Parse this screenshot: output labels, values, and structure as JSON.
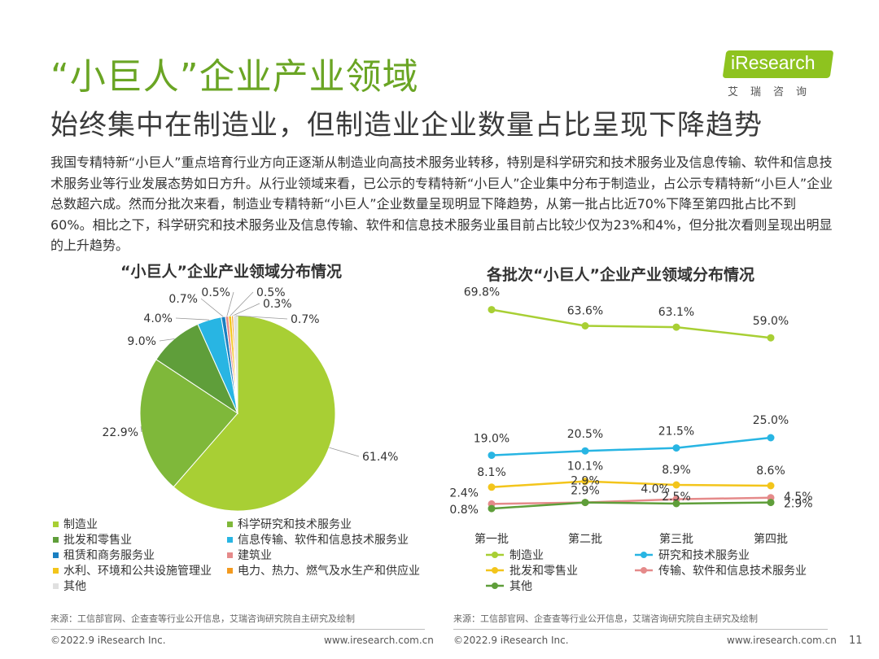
{
  "header": {
    "title": "“小巨人”企业产业领域",
    "subtitle": "始终集中在制造业，但制造业企业数量占比呈现下降趋势",
    "logo_text": "iResearch",
    "logo_sub": "艾瑞咨询"
  },
  "intro": "我国专精特新“小巨人”重点培育行业方向正逐渐从制造业向高技术服务业转移，特别是科学研究和技术服务业及信息传输、软件和信息技术服务业等行业发展态势如日方升。从行业领域来看，已公示的专精特新“小巨人”企业集中分布于制造业，占公示专精特新“小巨人”企业总数超六成。然而分批次来看，制造业专精特新“小巨人”企业数量呈现明显下降趋势，从第一批占比近70%下降至第四批占比不到60%。相比之下，科学研究和技术服务业及信息传输、软件和信息技术服务业虽目前占比较少仅为23%和4%，但分批次看则呈现出明显的上升趋势。",
  "chart_data": [
    {
      "type": "pie",
      "title": "“小巨人”企业产业领域分布情况",
      "unit": "%",
      "slices": [
        {
          "name": "制造业",
          "value": 61.4,
          "label": "61.4%",
          "color": "#a8cf34"
        },
        {
          "name": "科学研究和技术服务业",
          "value": 22.9,
          "label": "22.9%",
          "color": "#7fb83a"
        },
        {
          "name": "批发和零售业",
          "value": 9.0,
          "label": "9.0%",
          "color": "#5f9e3a"
        },
        {
          "name": "信息传输、软件和信息技术服务业",
          "value": 4.0,
          "label": "4.0%",
          "color": "#28b5e3"
        },
        {
          "name": "租赁和商务服务业",
          "value": 0.7,
          "label": "0.7%",
          "color": "#1a7fc1"
        },
        {
          "name": "建筑业",
          "value": 0.5,
          "label": "0.5%",
          "color": "#e58a8a"
        },
        {
          "name": "水利、环境和公共设施管理业",
          "value": 0.5,
          "label": "0.5%",
          "color": "#f3c51b"
        },
        {
          "name": "电力、热力、燃气及水生产和供应业",
          "value": 0.3,
          "label": "0.3%",
          "color": "#f39a1f"
        },
        {
          "name": "其他",
          "value": 0.7,
          "label": "0.7%",
          "color": "#e0e0e0"
        }
      ],
      "legend_position": "bottom"
    },
    {
      "type": "line",
      "title": "各批次“小巨人”企业产业领域分布情况",
      "unit": "%",
      "categories": [
        "第一批",
        "第二批",
        "第三批",
        "第四批"
      ],
      "series": [
        {
          "name": "制造业",
          "color": "#a8cf34",
          "values": [
            69.8,
            63.6,
            63.1,
            59.0
          ]
        },
        {
          "name": "研究和技术服务业",
          "color": "#28b5e3",
          "values": [
            19.0,
            20.5,
            21.5,
            25.0
          ]
        },
        {
          "name": "批发和零售业",
          "color": "#f3c51b",
          "values": [
            8.1,
            10.1,
            8.9,
            8.6
          ]
        },
        {
          "name": "传输、软件和信息技术服务业",
          "color": "#e58a8a",
          "values": [
            2.4,
            2.9,
            4.0,
            4.5
          ]
        },
        {
          "name": "其他",
          "color": "#5f9e3a",
          "values": [
            0.8,
            2.9,
            2.5,
            2.9
          ]
        }
      ],
      "data_labels": [
        [
          "69.8%",
          "63.6%",
          "63.1%",
          "59.0%"
        ],
        [
          "19.0%",
          "20.5%",
          "21.5%",
          "25.0%"
        ],
        [
          "8.1%",
          "10.1%",
          "8.9%",
          "8.6%"
        ],
        [
          "2.4%",
          "2.9%",
          "4.0%",
          "4.5%"
        ],
        [
          "0.8%",
          "2.9%",
          "2.5%",
          "2.9%"
        ]
      ],
      "legend_position": "bottom"
    }
  ],
  "sources": {
    "left": "来源：工信部官网、企查查等行业公开信息，艾瑞咨询研究院自主研究及绘制",
    "right": "来源：工信部官网、企查查等行业公开信息，艾瑞咨询研究院自主研究及绘制"
  },
  "footer": {
    "copyright_left": "©2022.9 iResearch Inc.",
    "url_left": "www.iresearch.com.cn",
    "copyright_right": "©2022.9 iResearch Inc.",
    "url_right": "www.iresearch.com.cn",
    "page": "11"
  }
}
